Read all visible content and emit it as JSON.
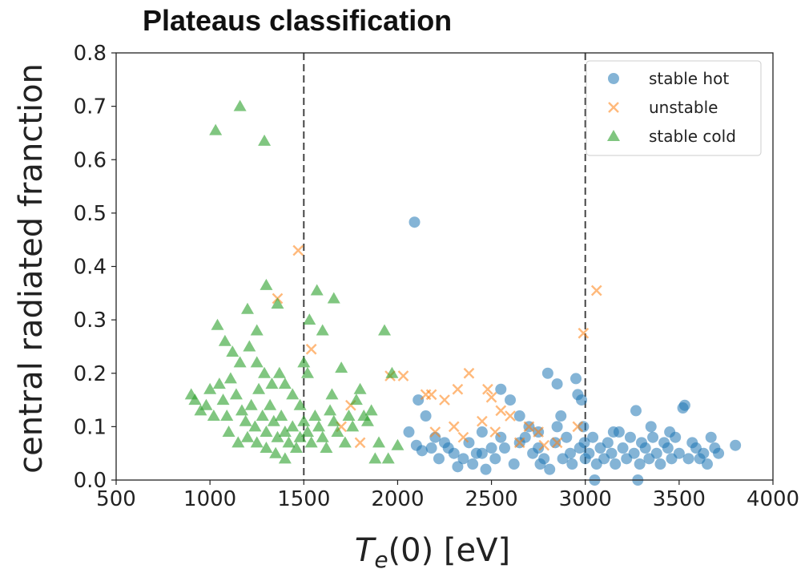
{
  "chart_data": {
    "type": "scatter",
    "title": "Plateaus classification",
    "xlabel_base": "T",
    "xlabel_sub": "e",
    "xlabel_rest": "(0) [eV]",
    "ylabel": "central radiated franction",
    "xlim": [
      500,
      4000
    ],
    "ylim": [
      0.0,
      0.8
    ],
    "xticks": [
      "500",
      "1000",
      "1500",
      "2000",
      "2500",
      "3000",
      "3500",
      "4000"
    ],
    "yticks": [
      "0.0",
      "0.1",
      "0.2",
      "0.3",
      "0.4",
      "0.5",
      "0.6",
      "0.7",
      "0.8"
    ],
    "vlines": [
      1500,
      3000
    ],
    "grid": false,
    "legend_position": "top-right",
    "series": [
      {
        "name": "stable hot",
        "marker": "circle",
        "color": "#1f77b4",
        "points": [
          [
            2090,
            0.483
          ],
          [
            2110,
            0.15
          ],
          [
            2150,
            0.12
          ],
          [
            2200,
            0.08
          ],
          [
            2250,
            0.07
          ],
          [
            2300,
            0.05
          ],
          [
            2350,
            0.04
          ],
          [
            2400,
            0.03
          ],
          [
            2450,
            0.05
          ],
          [
            2500,
            0.06
          ],
          [
            2550,
            0.17
          ],
          [
            2600,
            0.15
          ],
          [
            2650,
            0.12
          ],
          [
            2700,
            0.1
          ],
          [
            2750,
            0.06
          ],
          [
            2780,
            0.04
          ],
          [
            2800,
            0.2
          ],
          [
            2850,
            0.18
          ],
          [
            2870,
            0.12
          ],
          [
            2900,
            0.08
          ],
          [
            2920,
            0.05
          ],
          [
            2950,
            0.19
          ],
          [
            2960,
            0.16
          ],
          [
            2980,
            0.15
          ],
          [
            2990,
            0.1
          ],
          [
            2995,
            0.07
          ],
          [
            2060,
            0.09
          ],
          [
            2100,
            0.065
          ],
          [
            2130,
            0.055
          ],
          [
            2180,
            0.06
          ],
          [
            2220,
            0.04
          ],
          [
            2270,
            0.06
          ],
          [
            2320,
            0.025
          ],
          [
            2380,
            0.07
          ],
          [
            2420,
            0.05
          ],
          [
            2470,
            0.02
          ],
          [
            2520,
            0.04
          ],
          [
            2570,
            0.06
          ],
          [
            2620,
            0.03
          ],
          [
            2680,
            0.08
          ],
          [
            2720,
            0.05
          ],
          [
            2760,
            0.03
          ],
          [
            2810,
            0.02
          ],
          [
            2840,
            0.07
          ],
          [
            2880,
            0.04
          ],
          [
            2930,
            0.03
          ],
          [
            2970,
            0.06
          ],
          [
            3000,
            0.04
          ],
          [
            3020,
            0.05
          ],
          [
            3040,
            0.08
          ],
          [
            3060,
            0.03
          ],
          [
            3080,
            0.06
          ],
          [
            3100,
            0.04
          ],
          [
            3120,
            0.07
          ],
          [
            3140,
            0.05
          ],
          [
            3160,
            0.03
          ],
          [
            3180,
            0.09
          ],
          [
            3200,
            0.06
          ],
          [
            3220,
            0.04
          ],
          [
            3240,
            0.08
          ],
          [
            3260,
            0.05
          ],
          [
            3270,
            0.13
          ],
          [
            3290,
            0.03
          ],
          [
            3300,
            0.07
          ],
          [
            3320,
            0.06
          ],
          [
            3340,
            0.04
          ],
          [
            3360,
            0.08
          ],
          [
            3380,
            0.05
          ],
          [
            3400,
            0.03
          ],
          [
            3420,
            0.07
          ],
          [
            3440,
            0.06
          ],
          [
            3460,
            0.04
          ],
          [
            3480,
            0.08
          ],
          [
            3500,
            0.05
          ],
          [
            3520,
            0.135
          ],
          [
            3530,
            0.14
          ],
          [
            3550,
            0.04
          ],
          [
            3570,
            0.07
          ],
          [
            3590,
            0.06
          ],
          [
            3610,
            0.04
          ],
          [
            3630,
            0.05
          ],
          [
            3650,
            0.03
          ],
          [
            3670,
            0.08
          ],
          [
            3690,
            0.06
          ],
          [
            3710,
            0.05
          ],
          [
            3800,
            0.065
          ],
          [
            3280,
            0.0
          ],
          [
            3050,
            0.0
          ],
          [
            2850,
            0.1
          ],
          [
            2750,
            0.09
          ],
          [
            2650,
            0.07
          ],
          [
            2550,
            0.08
          ],
          [
            2450,
            0.09
          ],
          [
            3150,
            0.09
          ],
          [
            3350,
            0.1
          ],
          [
            3450,
            0.09
          ]
        ]
      },
      {
        "name": "unstable",
        "marker": "x",
        "color": "#ff7f0e",
        "points": [
          [
            1470,
            0.43
          ],
          [
            1360,
            0.34
          ],
          [
            1540,
            0.245
          ],
          [
            1960,
            0.195
          ],
          [
            2030,
            0.195
          ],
          [
            2150,
            0.16
          ],
          [
            2180,
            0.16
          ],
          [
            2250,
            0.15
          ],
          [
            2320,
            0.17
          ],
          [
            2380,
            0.2
          ],
          [
            2480,
            0.17
          ],
          [
            2500,
            0.155
          ],
          [
            2550,
            0.13
          ],
          [
            2300,
            0.1
          ],
          [
            2450,
            0.11
          ],
          [
            2200,
            0.09
          ],
          [
            2350,
            0.08
          ],
          [
            2520,
            0.09
          ],
          [
            2650,
            0.07
          ],
          [
            2700,
            0.1
          ],
          [
            2780,
            0.065
          ],
          [
            2850,
            0.07
          ],
          [
            2960,
            0.1
          ],
          [
            2990,
            0.275
          ],
          [
            3060,
            0.355
          ],
          [
            1750,
            0.14
          ],
          [
            1700,
            0.1
          ],
          [
            1800,
            0.07
          ],
          [
            2600,
            0.12
          ],
          [
            2750,
            0.09
          ]
        ]
      },
      {
        "name": "stable cold",
        "marker": "triangle",
        "color": "#2ca02c",
        "points": [
          [
            1030,
            0.655
          ],
          [
            1160,
            0.7
          ],
          [
            1290,
            0.635
          ],
          [
            1300,
            0.365
          ],
          [
            1360,
            0.33
          ],
          [
            1570,
            0.355
          ],
          [
            1660,
            0.34
          ],
          [
            1530,
            0.3
          ],
          [
            1600,
            0.28
          ],
          [
            1930,
            0.28
          ],
          [
            1200,
            0.32
          ],
          [
            1250,
            0.28
          ],
          [
            1040,
            0.29
          ],
          [
            1080,
            0.26
          ],
          [
            1120,
            0.24
          ],
          [
            1160,
            0.22
          ],
          [
            1210,
            0.25
          ],
          [
            1250,
            0.22
          ],
          [
            1290,
            0.2
          ],
          [
            1330,
            0.18
          ],
          [
            1370,
            0.2
          ],
          [
            1400,
            0.18
          ],
          [
            1440,
            0.16
          ],
          [
            1480,
            0.14
          ],
          [
            900,
            0.16
          ],
          [
            920,
            0.15
          ],
          [
            950,
            0.13
          ],
          [
            980,
            0.14
          ],
          [
            1000,
            0.17
          ],
          [
            1020,
            0.12
          ],
          [
            1050,
            0.18
          ],
          [
            1070,
            0.15
          ],
          [
            1090,
            0.12
          ],
          [
            1110,
            0.19
          ],
          [
            1140,
            0.16
          ],
          [
            1170,
            0.13
          ],
          [
            1190,
            0.11
          ],
          [
            1220,
            0.14
          ],
          [
            1240,
            0.1
          ],
          [
            1260,
            0.17
          ],
          [
            1280,
            0.12
          ],
          [
            1300,
            0.09
          ],
          [
            1320,
            0.14
          ],
          [
            1340,
            0.11
          ],
          [
            1360,
            0.08
          ],
          [
            1380,
            0.12
          ],
          [
            1400,
            0.09
          ],
          [
            1420,
            0.07
          ],
          [
            1440,
            0.1
          ],
          [
            1460,
            0.06
          ],
          [
            1480,
            0.08
          ],
          [
            1500,
            0.11
          ],
          [
            1520,
            0.09
          ],
          [
            1540,
            0.07
          ],
          [
            1560,
            0.12
          ],
          [
            1580,
            0.1
          ],
          [
            1600,
            0.08
          ],
          [
            1620,
            0.06
          ],
          [
            1640,
            0.13
          ],
          [
            1660,
            0.11
          ],
          [
            1680,
            0.09
          ],
          [
            1700,
            0.21
          ],
          [
            1720,
            0.07
          ],
          [
            1740,
            0.12
          ],
          [
            1760,
            0.1
          ],
          [
            1780,
            0.15
          ],
          [
            1800,
            0.17
          ],
          [
            1820,
            0.12
          ],
          [
            1840,
            0.11
          ],
          [
            1860,
            0.13
          ],
          [
            1880,
            0.04
          ],
          [
            1900,
            0.07
          ],
          [
            1950,
            0.04
          ],
          [
            1970,
            0.2
          ],
          [
            2000,
            0.065
          ],
          [
            1500,
            0.22
          ],
          [
            1520,
            0.2
          ],
          [
            1650,
            0.16
          ],
          [
            1350,
            0.05
          ],
          [
            1400,
            0.04
          ],
          [
            1300,
            0.06
          ],
          [
            1200,
            0.08
          ],
          [
            1100,
            0.09
          ],
          [
            1150,
            0.07
          ],
          [
            1250,
            0.07
          ]
        ]
      }
    ]
  }
}
